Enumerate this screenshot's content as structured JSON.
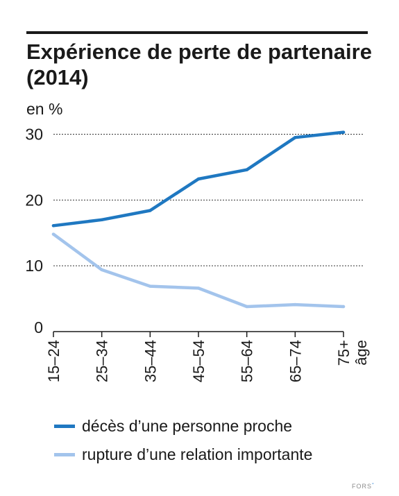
{
  "title": "Expérience de perte de partenaire (2014)",
  "credit": "FORS",
  "credit_mark": "°",
  "colors": {
    "deces": "#1f78c1",
    "rupture": "#a3c4ec",
    "text": "#1a1a1a",
    "grid": "#333333"
  },
  "chart_data": {
    "type": "line",
    "categories": [
      "15–24",
      "25–34",
      "35–44",
      "45–54",
      "55–64",
      "65–74",
      "75+"
    ],
    "xlabel": "âge",
    "ylabel": "en %",
    "yticks": [
      0,
      10,
      20,
      30
    ],
    "ylim": [
      0,
      31
    ],
    "grid": "horizontal dashed",
    "legend_position": "bottom",
    "series": [
      {
        "name": "décès d’une personne proche",
        "color": "#1f78c1",
        "values": [
          16.1,
          17.0,
          18.4,
          23.2,
          24.6,
          29.5,
          30.3
        ]
      },
      {
        "name": "rupture d’une relation importante",
        "color": "#a3c4ec",
        "values": [
          14.8,
          9.4,
          6.9,
          6.6,
          3.8,
          4.1,
          3.8
        ]
      }
    ]
  }
}
